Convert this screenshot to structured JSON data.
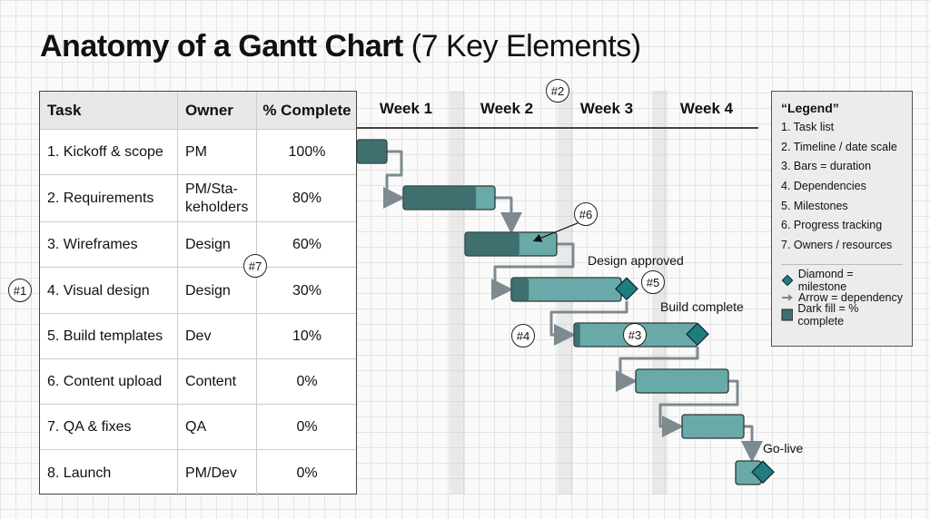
{
  "title": {
    "main": "Anatomy of a Gantt Chart",
    "sub": "(7 Key Elements)"
  },
  "table": {
    "headers": [
      "Task",
      "Owner",
      "% Complete"
    ],
    "rows": [
      {
        "task": "1. Kickoff & scope",
        "owner": "PM",
        "pct": "100%",
        "complete": 1.0
      },
      {
        "task": "2. Requirements",
        "owner": "PM/Sta-\nkeholders",
        "pct": "80%",
        "complete": 0.8
      },
      {
        "task": "3. Wireframes",
        "owner": "Design",
        "pct": "60%",
        "complete": 0.6
      },
      {
        "task": "4. Visual design",
        "owner": "Design",
        "pct": "30%",
        "complete": 0.3
      },
      {
        "task": "5. Build templates",
        "owner": "Dev",
        "pct": "10%",
        "complete": 0.1
      },
      {
        "task": "6. Content upload",
        "owner": "Content",
        "pct": "0%",
        "complete": 0
      },
      {
        "task": "7. QA & fixes",
        "owner": "QA",
        "pct": "0%",
        "complete": 0
      },
      {
        "task": "8. Launch",
        "owner": "PM/Dev",
        "pct": "0%",
        "complete": 0
      }
    ]
  },
  "timeline": {
    "weeks": [
      "Week 1",
      "Week 2",
      "Week 3",
      "Week 4"
    ]
  },
  "milestones": [
    "Design approved",
    "Build complete",
    "Go-live"
  ],
  "callouts": [
    "#1",
    "#2",
    "#3",
    "#4",
    "#5",
    "#6",
    "#7"
  ],
  "legend": {
    "title": "“Legend”",
    "items": [
      "1. Task list",
      "2. Timeline / date scale",
      "3. Bars = duration",
      "4. Dependencies",
      "5. Milestones",
      "6. Progress tracking",
      "7. Owners / resources"
    ],
    "key": [
      {
        "icon": "diamond-icon",
        "label": "Diamond = milestone"
      },
      {
        "icon": "arrow-icon",
        "label": "Arrow = dependency"
      },
      {
        "icon": "square-icon",
        "label": "Dark fill = % complete"
      }
    ]
  },
  "colors": {
    "bar_light": "#69aaa8",
    "bar_dark": "#3f6f6e",
    "milestone": "#1f7d80",
    "arrow": "#7d8a90"
  }
}
